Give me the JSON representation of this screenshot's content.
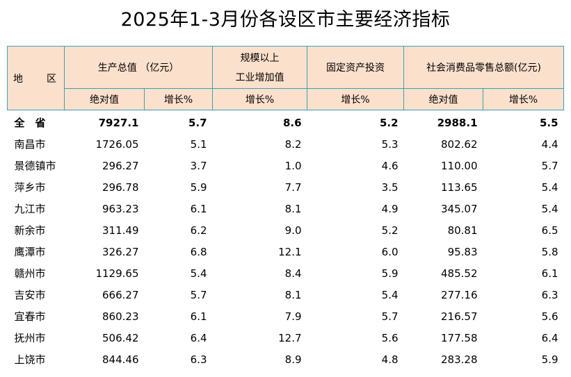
{
  "title": "2025年1-3月份各设区市主要经济指标",
  "headers": {
    "region_a": "地",
    "region_b": "区",
    "gdp": "生产总值 （亿元）",
    "industry_line1": "规模以上",
    "industry_line2": "工业增加值",
    "fixed_investment": "固定资产投资",
    "retail": "社会消费品零售总额(亿元)",
    "absolute": "绝对值",
    "growth": "增长%"
  },
  "rows": [
    {
      "name": "全　省",
      "gdp": "7927.1",
      "gdp_growth": "5.7",
      "industry_growth": "8.6",
      "investment_growth": "5.2",
      "retail": "2988.1",
      "retail_growth": "5.5"
    },
    {
      "name": "南昌市",
      "gdp": "1726.05",
      "gdp_growth": "5.1",
      "industry_growth": "8.2",
      "investment_growth": "5.3",
      "retail": "802.62",
      "retail_growth": "4.4"
    },
    {
      "name": "景德镇市",
      "gdp": "296.27",
      "gdp_growth": "3.7",
      "industry_growth": "1.0",
      "investment_growth": "4.6",
      "retail": "110.00",
      "retail_growth": "5.7"
    },
    {
      "name": "萍乡市",
      "gdp": "296.78",
      "gdp_growth": "5.9",
      "industry_growth": "7.7",
      "investment_growth": "3.5",
      "retail": "113.65",
      "retail_growth": "5.4"
    },
    {
      "name": "九江市",
      "gdp": "963.23",
      "gdp_growth": "6.1",
      "industry_growth": "8.1",
      "investment_growth": "4.9",
      "retail": "345.07",
      "retail_growth": "5.4"
    },
    {
      "name": "新余市",
      "gdp": "311.49",
      "gdp_growth": "6.2",
      "industry_growth": "9.0",
      "investment_growth": "5.2",
      "retail": "80.81",
      "retail_growth": "6.5"
    },
    {
      "name": "鹰潭市",
      "gdp": "326.27",
      "gdp_growth": "6.8",
      "industry_growth": "12.1",
      "investment_growth": "6.0",
      "retail": "95.83",
      "retail_growth": "5.8"
    },
    {
      "name": "赣州市",
      "gdp": "1129.65",
      "gdp_growth": "5.4",
      "industry_growth": "8.4",
      "investment_growth": "5.9",
      "retail": "485.52",
      "retail_growth": "6.1"
    },
    {
      "name": "吉安市",
      "gdp": "666.27",
      "gdp_growth": "5.7",
      "industry_growth": "8.1",
      "investment_growth": "5.4",
      "retail": "277.16",
      "retail_growth": "6.3"
    },
    {
      "name": "宜春市",
      "gdp": "860.23",
      "gdp_growth": "6.1",
      "industry_growth": "7.9",
      "investment_growth": "5.7",
      "retail": "216.57",
      "retail_growth": "5.6"
    },
    {
      "name": "抚州市",
      "gdp": "506.42",
      "gdp_growth": "6.4",
      "industry_growth": "12.7",
      "investment_growth": "5.6",
      "retail": "177.58",
      "retail_growth": "6.4"
    },
    {
      "name": "上饶市",
      "gdp": "844.46",
      "gdp_growth": "6.3",
      "industry_growth": "8.9",
      "investment_growth": "4.8",
      "retail": "283.28",
      "retail_growth": "5.9"
    }
  ],
  "colors": {
    "header_bg": "#fbe0cc",
    "border": "#3aa0b4"
  }
}
